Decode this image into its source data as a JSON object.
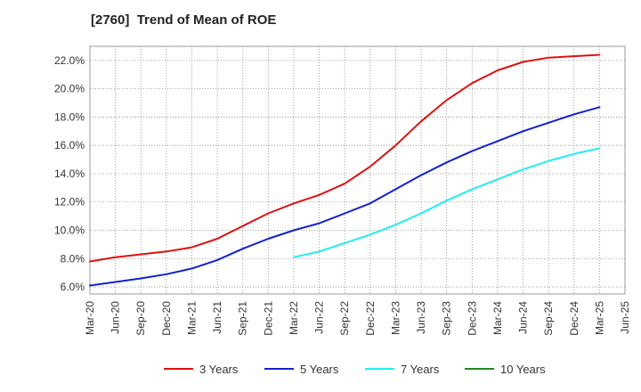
{
  "chart_data": {
    "type": "line",
    "title": "[2760]  Trend of Mean of ROE",
    "x": [
      "Mar-20",
      "Jun-20",
      "Sep-20",
      "Dec-20",
      "Mar-21",
      "Jun-21",
      "Sep-21",
      "Dec-21",
      "Mar-22",
      "Jun-22",
      "Sep-22",
      "Dec-22",
      "Mar-23",
      "Jun-23",
      "Sep-23",
      "Dec-23",
      "Mar-24",
      "Jun-24",
      "Sep-24",
      "Dec-24",
      "Mar-25",
      "Jun-25"
    ],
    "ylim": [
      5.5,
      23.0
    ],
    "yticks": [
      6.0,
      8.0,
      10.0,
      12.0,
      14.0,
      16.0,
      18.0,
      20.0,
      22.0
    ],
    "ytick_labels": [
      "6.0%",
      "8.0%",
      "10.0%",
      "12.0%",
      "14.0%",
      "16.0%",
      "18.0%",
      "20.0%",
      "22.0%"
    ],
    "grid": true,
    "legend_position": "bottom",
    "series": [
      {
        "name": "3 Years",
        "color": "#dd1111",
        "values": [
          7.8,
          8.1,
          8.3,
          8.5,
          8.8,
          9.4,
          10.3,
          11.2,
          11.9,
          12.5,
          13.3,
          14.5,
          16.0,
          17.7,
          19.2,
          20.4,
          21.3,
          21.9,
          22.2,
          22.3,
          22.4,
          null
        ]
      },
      {
        "name": "5 Years",
        "color": "#1122cc",
        "values": [
          6.1,
          6.35,
          6.6,
          6.9,
          7.3,
          7.9,
          8.7,
          9.4,
          10.0,
          10.5,
          11.2,
          11.9,
          12.9,
          13.9,
          14.8,
          15.6,
          16.3,
          17.0,
          17.6,
          18.2,
          18.7,
          null
        ]
      },
      {
        "name": "7 Years",
        "color": "#22eeee",
        "values": [
          null,
          null,
          null,
          null,
          null,
          null,
          null,
          null,
          8.1,
          8.5,
          9.1,
          9.7,
          10.4,
          11.2,
          12.1,
          12.9,
          13.6,
          14.3,
          14.9,
          15.4,
          15.8,
          null
        ]
      },
      {
        "name": "10 Years",
        "color": "#228822",
        "values": [
          null,
          null,
          null,
          null,
          null,
          null,
          null,
          null,
          null,
          null,
          null,
          null,
          null,
          null,
          null,
          null,
          null,
          null,
          null,
          null,
          null,
          null
        ]
      }
    ]
  }
}
